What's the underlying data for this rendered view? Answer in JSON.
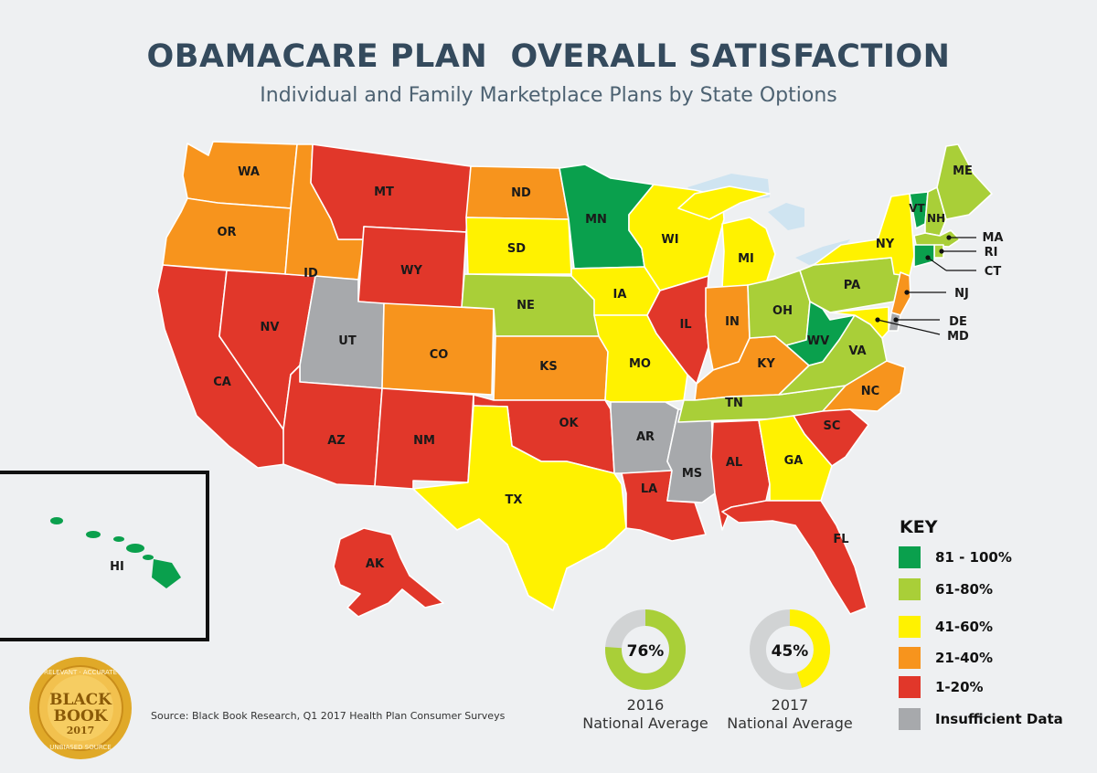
{
  "title": "OBAMACARE PLAN  OVERALL SATISFACTION",
  "subtitle": "Individual and Family Marketplace Plans by State Options",
  "colors": {
    "c81_100": "#0aa04d",
    "c61_80": "#a9cf38",
    "c41_60": "#fff200",
    "c21_40": "#f7941d",
    "c1_20": "#e1372a",
    "insufficient": "#a7a9ac",
    "background": "#eef0f2"
  },
  "key": {
    "title": "KEY",
    "items": [
      {
        "label": "81 - 100%",
        "color": "#0aa04d"
      },
      {
        "label": "61-80%",
        "color": "#a9cf38"
      },
      {
        "label": "41-60%",
        "color": "#fff200"
      },
      {
        "label": "21-40%",
        "color": "#f7941d"
      },
      {
        "label": "1-20%",
        "color": "#e1372a"
      },
      {
        "label": "Insufficient Data",
        "color": "#a7a9ac"
      }
    ]
  },
  "states": [
    {
      "abbr": "WA",
      "category": "21-40%"
    },
    {
      "abbr": "OR",
      "category": "21-40%"
    },
    {
      "abbr": "CA",
      "category": "1-20%"
    },
    {
      "abbr": "NV",
      "category": "1-20%"
    },
    {
      "abbr": "ID",
      "category": "21-40%"
    },
    {
      "abbr": "MT",
      "category": "1-20%"
    },
    {
      "abbr": "WY",
      "category": "1-20%"
    },
    {
      "abbr": "UT",
      "category": "Insufficient Data"
    },
    {
      "abbr": "AZ",
      "category": "1-20%"
    },
    {
      "abbr": "CO",
      "category": "21-40%"
    },
    {
      "abbr": "NM",
      "category": "1-20%"
    },
    {
      "abbr": "ND",
      "category": "21-40%"
    },
    {
      "abbr": "SD",
      "category": "41-60%"
    },
    {
      "abbr": "NE",
      "category": "61-80%"
    },
    {
      "abbr": "KS",
      "category": "21-40%"
    },
    {
      "abbr": "OK",
      "category": "1-20%"
    },
    {
      "abbr": "TX",
      "category": "41-60%"
    },
    {
      "abbr": "MN",
      "category": "81 - 100%"
    },
    {
      "abbr": "IA",
      "category": "41-60%"
    },
    {
      "abbr": "MO",
      "category": "41-60%"
    },
    {
      "abbr": "AR",
      "category": "Insufficient Data"
    },
    {
      "abbr": "LA",
      "category": "1-20%"
    },
    {
      "abbr": "WI",
      "category": "41-60%"
    },
    {
      "abbr": "IL",
      "category": "1-20%"
    },
    {
      "abbr": "MS",
      "category": "Insufficient Data"
    },
    {
      "abbr": "MI",
      "category": "41-60%"
    },
    {
      "abbr": "IN",
      "category": "21-40%"
    },
    {
      "abbr": "KY",
      "category": "21-40%"
    },
    {
      "abbr": "TN",
      "category": "61-80%"
    },
    {
      "abbr": "AL",
      "category": "1-20%"
    },
    {
      "abbr": "OH",
      "category": "61-80%"
    },
    {
      "abbr": "WV",
      "category": "81 - 100%"
    },
    {
      "abbr": "VA",
      "category": "61-80%"
    },
    {
      "abbr": "NC",
      "category": "21-40%"
    },
    {
      "abbr": "SC",
      "category": "1-20%"
    },
    {
      "abbr": "GA",
      "category": "41-60%"
    },
    {
      "abbr": "FL",
      "category": "1-20%"
    },
    {
      "abbr": "PA",
      "category": "61-80%"
    },
    {
      "abbr": "NY",
      "category": "41-60%"
    },
    {
      "abbr": "NJ",
      "category": "21-40%"
    },
    {
      "abbr": "DE",
      "category": "Insufficient Data"
    },
    {
      "abbr": "MD",
      "category": "41-60%"
    },
    {
      "abbr": "VT",
      "category": "81 - 100%"
    },
    {
      "abbr": "NH",
      "category": "61-80%"
    },
    {
      "abbr": "ME",
      "category": "61-80%"
    },
    {
      "abbr": "MA",
      "category": "61-80%"
    },
    {
      "abbr": "RI",
      "category": "61-80%"
    },
    {
      "abbr": "CT",
      "category": "81 - 100%"
    },
    {
      "abbr": "AK",
      "category": "1-20%"
    },
    {
      "abbr": "HI",
      "category": "81 - 100%"
    }
  ],
  "averages": [
    {
      "percent": "76%",
      "fraction": 0.76,
      "year": "2016",
      "label": "National Average",
      "color": "#a9cf38"
    },
    {
      "percent": "45%",
      "fraction": 0.45,
      "year": "2017",
      "label": "National Average",
      "color": "#fff200"
    }
  ],
  "source": "Source: Black Book Research, Q1 2017 Health Plan Consumer Surveys",
  "badge": {
    "line1": "BLACK",
    "line2": "BOOK",
    "year": "2017",
    "ring_top": "RELEVANT · ACCURATE",
    "ring_bottom": "UNBIASED SOURCE"
  }
}
